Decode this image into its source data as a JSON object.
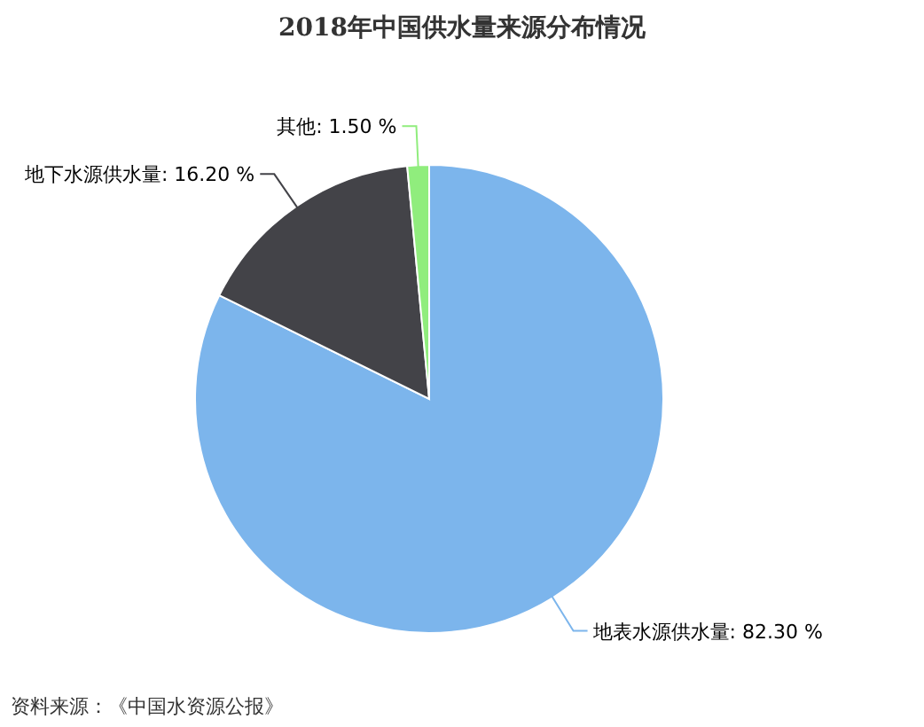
{
  "chart_data": {
    "type": "pie",
    "title": "2018年中国供水量来源分布情况",
    "categories": [
      "地表水源供水量",
      "地下水源供水量",
      "其他"
    ],
    "values": [
      82.3,
      16.2,
      1.5
    ],
    "value_labels": [
      "82.30 %",
      "16.20 %",
      "1.50 %"
    ],
    "colors": [
      "#7cb5ec",
      "#434348",
      "#90ed7d"
    ],
    "annotations": [
      "资料来源：《中国水资源公报》"
    ]
  }
}
